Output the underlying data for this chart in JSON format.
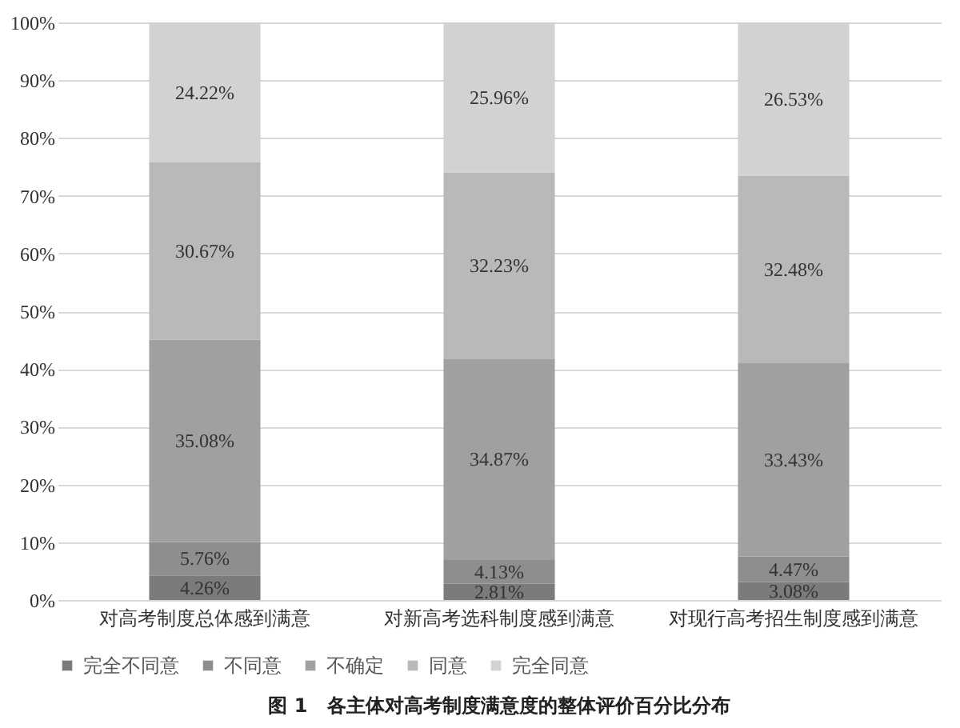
{
  "chart_data": {
    "type": "bar",
    "stacked": true,
    "title": "图 1　各主体对高考制度满意度的整体评价百分比分布",
    "categories": [
      "对高考制度总体感到满意",
      "对新高考选科制度感到满意",
      "对现行高考招生制度感到满意"
    ],
    "series": [
      {
        "name": "完全不同意",
        "color": "#7b7b7b",
        "values": [
          4.26,
          2.81,
          3.08
        ],
        "value_labels": [
          "4.26%",
          "2.81%",
          "3.08%"
        ]
      },
      {
        "name": "不同意",
        "color": "#8e8e8e",
        "values": [
          5.76,
          4.13,
          4.47
        ],
        "value_labels": [
          "5.76%",
          "4.13%",
          "4.47%"
        ]
      },
      {
        "name": "不确定",
        "color": "#a0a0a0",
        "values": [
          35.08,
          34.87,
          33.43
        ],
        "value_labels": [
          "35.08%",
          "34.87%",
          "33.43%"
        ]
      },
      {
        "name": "同意",
        "color": "#b9b9b9",
        "values": [
          30.67,
          32.23,
          32.48
        ],
        "value_labels": [
          "30.67%",
          "32.23%",
          "32.48%"
        ]
      },
      {
        "name": "完全同意",
        "color": "#d2d2d2",
        "values": [
          24.22,
          25.96,
          26.53
        ],
        "value_labels": [
          "24.22%",
          "25.96%",
          "26.53%"
        ]
      }
    ],
    "ylim": [
      0,
      100
    ],
    "yticks": [
      {
        "value": 0,
        "label": "0%"
      },
      {
        "value": 10,
        "label": "10%"
      },
      {
        "value": 20,
        "label": "20%"
      },
      {
        "value": 30,
        "label": "30%"
      },
      {
        "value": 40,
        "label": "40%"
      },
      {
        "value": 50,
        "label": "50%"
      },
      {
        "value": 60,
        "label": "60%"
      },
      {
        "value": 70,
        "label": "70%"
      },
      {
        "value": 80,
        "label": "80%"
      },
      {
        "value": 90,
        "label": "90%"
      },
      {
        "value": 100,
        "label": "100%"
      }
    ],
    "grid": "y",
    "legend": "bottom"
  }
}
